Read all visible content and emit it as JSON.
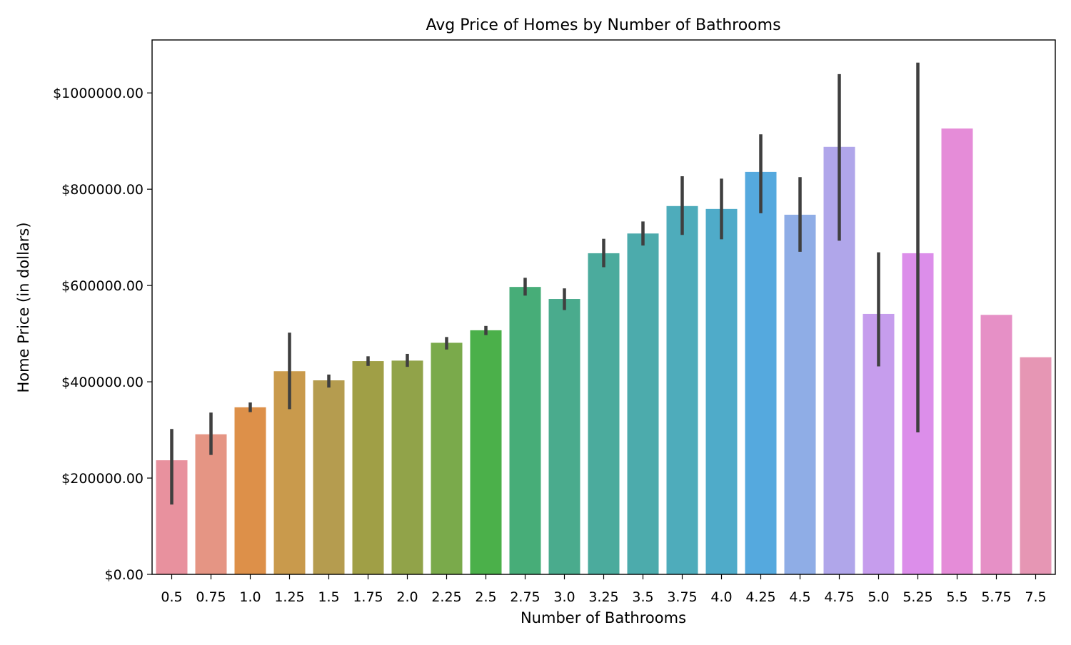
{
  "chart_data": {
    "type": "bar",
    "title": "Avg Price of Homes by Number of Bathrooms",
    "xlabel": "Number of Bathrooms",
    "ylabel": "Home Price (in dollars)",
    "ylim": [
      0,
      1110000
    ],
    "y_ticks": [
      0,
      200000,
      400000,
      600000,
      800000,
      1000000
    ],
    "y_tick_labels": [
      "$0.00",
      "$200000.00",
      "$400000.00",
      "$600000.00",
      "$800000.00",
      "$1000000.00"
    ],
    "grid": false,
    "categories": [
      "0.5",
      "0.75",
      "1.0",
      "1.25",
      "1.5",
      "1.75",
      "2.0",
      "2.25",
      "2.5",
      "2.75",
      "3.0",
      "3.25",
      "3.5",
      "3.75",
      "4.0",
      "4.25",
      "4.5",
      "4.75",
      "5.0",
      "5.25",
      "5.5",
      "5.75",
      "7.5"
    ],
    "values": [
      237000,
      291000,
      347000,
      422000,
      403000,
      443000,
      444000,
      481000,
      507000,
      597000,
      572000,
      667000,
      708000,
      765000,
      759000,
      836000,
      747000,
      888000,
      541000,
      667000,
      926000,
      539000,
      451000
    ],
    "error_low": [
      145000,
      248000,
      337000,
      343000,
      388000,
      433000,
      431000,
      467000,
      497000,
      579000,
      549000,
      638000,
      683000,
      705000,
      696000,
      750000,
      670000,
      693000,
      432000,
      295000,
      null,
      null,
      null
    ],
    "error_high": [
      302000,
      336000,
      357000,
      502000,
      415000,
      453000,
      458000,
      493000,
      516000,
      616000,
      594000,
      697000,
      733000,
      827000,
      822000,
      914000,
      825000,
      1039000,
      669000,
      1063000,
      null,
      null,
      null
    ],
    "colors": [
      "#e8919e",
      "#e59584",
      "#dd9049",
      "#c99a4c",
      "#b59c4f",
      "#a09f46",
      "#91a349",
      "#7aaa4b",
      "#4bb04a",
      "#47ad78",
      "#4aab8d",
      "#4bab9d",
      "#4cabac",
      "#4eacbb",
      "#4fabc9",
      "#55a9de",
      "#8fade6",
      "#b0a6ea",
      "#c69ded",
      "#dc8eea",
      "#e58cd8",
      "#e690c6",
      "#e696b4"
    ]
  }
}
